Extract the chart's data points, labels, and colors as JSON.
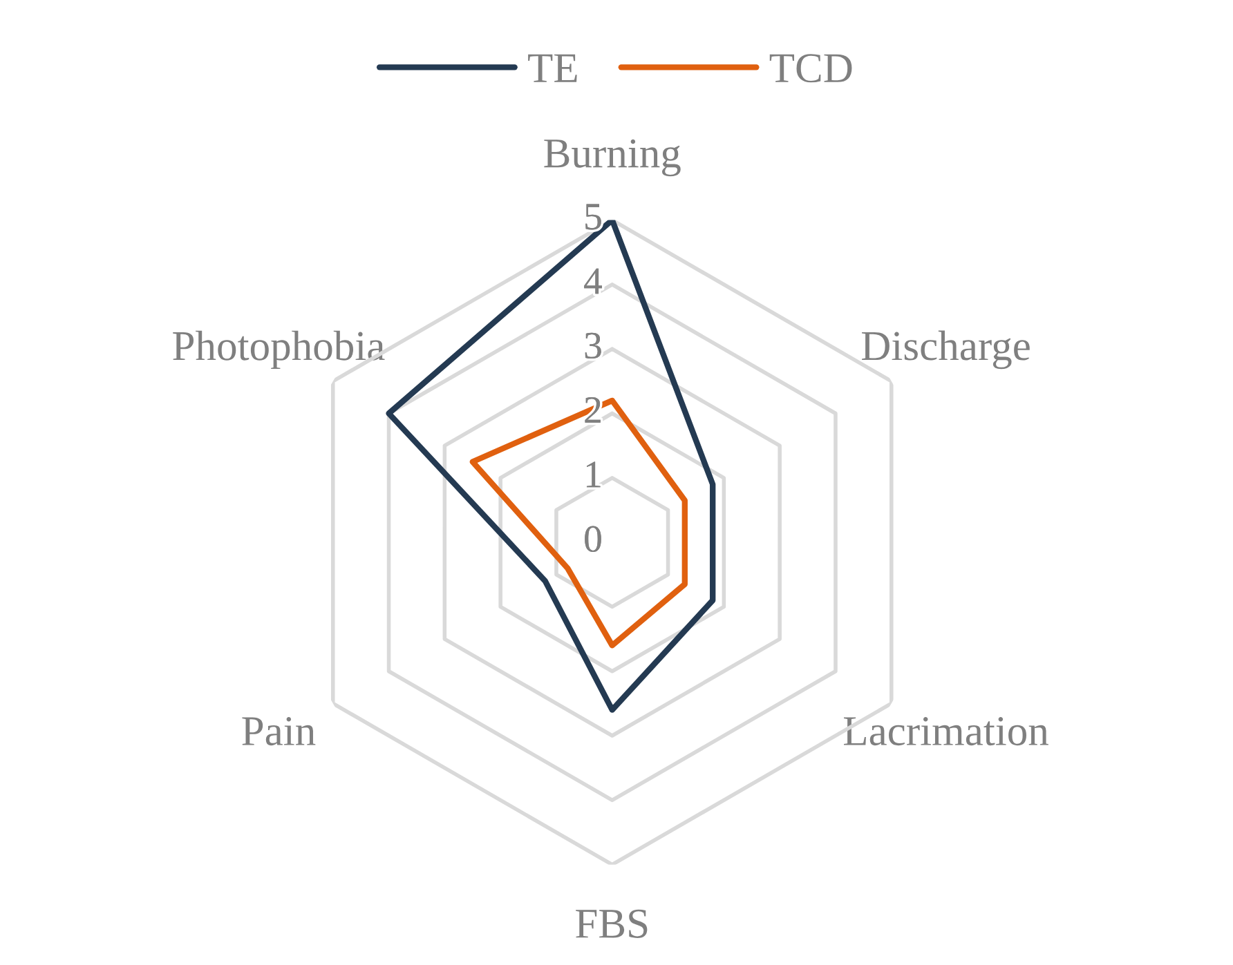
{
  "chart_data": {
    "type": "radar",
    "categories": [
      "Burning",
      "Discharge",
      "Lacrimation",
      "FBS",
      "Pain",
      "Photophobia"
    ],
    "series": [
      {
        "name": "TE",
        "color": "#243a52",
        "values": [
          5,
          1.8,
          1.8,
          2.6,
          1.2,
          4
        ]
      },
      {
        "name": "TCD",
        "color": "#e0600f",
        "values": [
          2.2,
          1.3,
          1.3,
          1.6,
          0.8,
          2.5
        ]
      }
    ],
    "ylim": [
      0,
      5
    ],
    "yticks": [
      0,
      1,
      2,
      3,
      4,
      5
    ],
    "grid": true,
    "legend": "top",
    "marker": "none",
    "line_style": "solid"
  }
}
